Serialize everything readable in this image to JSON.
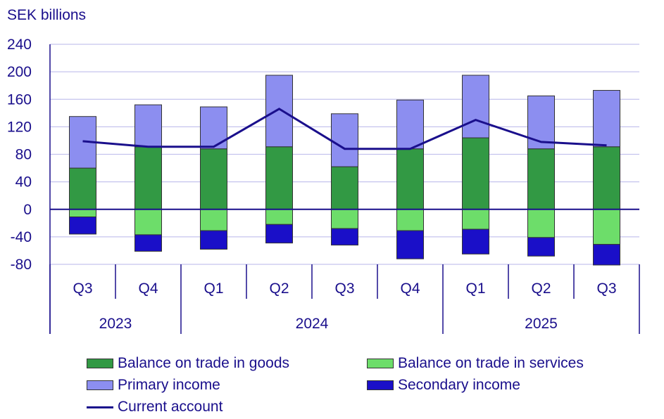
{
  "chart_data": {
    "type": "bar",
    "ylabel": "SEK billions",
    "ylim": [
      -80,
      240
    ],
    "yticks": [
      240,
      200,
      160,
      120,
      80,
      40,
      0,
      -40,
      -80
    ],
    "ytick_labels": [
      "240",
      "200",
      "160",
      "120",
      "80",
      "40",
      "0",
      "-40",
      "-80"
    ],
    "grid": true,
    "stacked": true,
    "legend_position": "bottom",
    "categories": [
      "Q3",
      "Q4",
      "Q1",
      "Q2",
      "Q3",
      "Q4",
      "Q1",
      "Q2",
      "Q3"
    ],
    "years": [
      {
        "label": "2023",
        "span": 2
      },
      {
        "label": "2024",
        "span": 4
      },
      {
        "label": "2025",
        "span": 3
      }
    ],
    "series": [
      {
        "name": "Balance on trade in goods",
        "color": "#329944",
        "type": "bar",
        "values": [
          60,
          91,
          88,
          91,
          62,
          88,
          104,
          88,
          91
        ]
      },
      {
        "name": "Balance on trade in services",
        "color": "#6ddd6a",
        "type": "bar",
        "values": [
          -11,
          -37,
          -31,
          -22,
          -28,
          -31,
          -29,
          -41,
          -51
        ]
      },
      {
        "name": "Primary income",
        "color": "#8c8ef0",
        "type": "bar",
        "values": [
          75,
          61,
          61,
          104,
          77,
          71,
          91,
          77,
          82
        ]
      },
      {
        "name": "Secondary income",
        "color": "#1a0fc8",
        "type": "bar",
        "values": [
          -25,
          -24,
          -27,
          -27,
          -24,
          -41,
          -36,
          -27,
          -30
        ]
      },
      {
        "name": "Current account",
        "color": "#1a0f8c",
        "type": "line",
        "values": [
          99,
          91,
          91,
          146,
          88,
          88,
          130,
          98,
          93
        ]
      }
    ]
  }
}
